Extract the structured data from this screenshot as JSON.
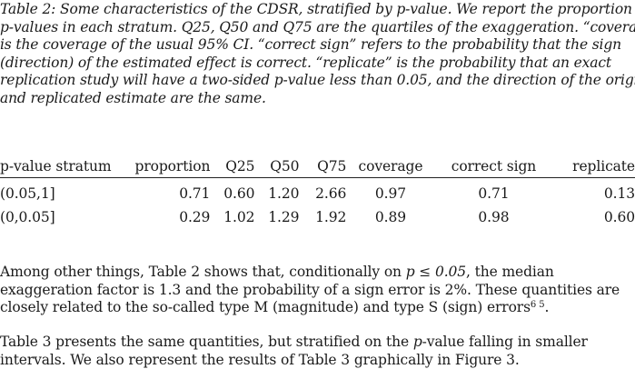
{
  "caption": {
    "lines": [
      "Table 2: Some characteristics of the CDSR, stratified by p-value. We report the proportion of",
      "p-values in each stratum. Q25, Q50 and Q75 are the quartiles of the exaggeration. “coverage”",
      "is the coverage of the usual 95% CI. “correct sign” refers to the probability that the sign",
      "(direction) of the estimated effect is correct. “replicate” is the probability that an exact",
      "replication study will have a two-sided p-value less than 0.05, and the direction of the original",
      "and replicated estimate are the same."
    ]
  },
  "table": {
    "headers": {
      "stratum": "p-value stratum",
      "proportion": "proportion",
      "q25": "Q25",
      "q50": "Q50",
      "q75": "Q75",
      "coverage": "coverage",
      "correct_sign": "correct sign",
      "replicate": "replicate"
    },
    "rows": [
      {
        "stratum": "(0.05,1]",
        "proportion": "0.71",
        "q25": "0.60",
        "q50": "1.20",
        "q75": "2.66",
        "coverage": "0.97",
        "correct_sign": "0.71",
        "replicate": "0.13"
      },
      {
        "stratum": "(0,0.05]",
        "proportion": "0.29",
        "q25": "1.02",
        "q50": "1.29",
        "q75": "1.92",
        "coverage": "0.89",
        "correct_sign": "0.98",
        "replicate": "0.60"
      }
    ]
  },
  "paragraph1": {
    "line1_before": "Among other things, Table 2 shows that, conditionally on ",
    "line1_math": "p ≤ 0.05",
    "line1_after": ", the median",
    "line2": "exaggeration factor is 1.3 and the probability of a sign error is 2%. These quantities are",
    "line3_text": "closely related to the so-called type M (magnitude) and type S (sign) errors",
    "line3_sup": "6 5",
    "line3_end": "."
  },
  "paragraph2": {
    "line1_before": "Table 3 presents the same quantities, but stratified on the ",
    "line1_math": "p",
    "line1_after": "-value falling in smaller",
    "line2": "intervals. We also represent the results of Table 3 graphically in Figure 3."
  }
}
